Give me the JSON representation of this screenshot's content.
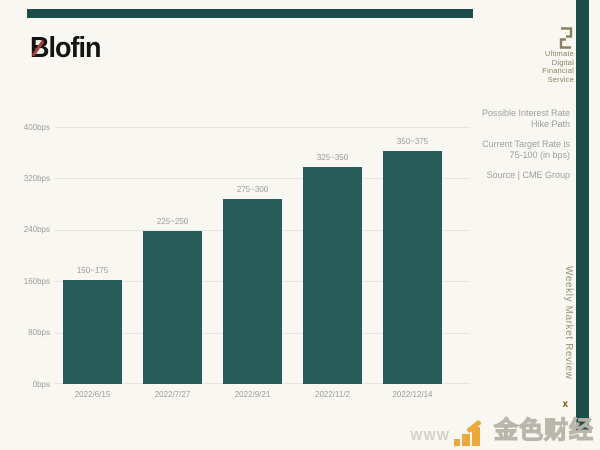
{
  "brand": {
    "name": "Blofin",
    "tagline": [
      "Ultimate",
      "Digital",
      "Financial",
      "Service"
    ]
  },
  "annotations": {
    "heading": [
      "Possible Interest Rate",
      "Hike Path"
    ],
    "target": [
      "Current Target Rate is",
      "75-100 (in bps)"
    ],
    "source": "Source | CME Group"
  },
  "side": {
    "vertical_label": "Weekly Market Review"
  },
  "watermark": {
    "www_text": "WWW",
    "site_name": "金色财经",
    "small_x": "x",
    "icon": "gold-bar-chart-icon"
  },
  "colors": {
    "background": "#f8f7f2",
    "accent_bar": "#1e4c48",
    "chart_bar": "#265c59",
    "olive_text": "#8b8162",
    "gray_text": "#9c9c9a",
    "gold": "#eda83d"
  },
  "chart_data": {
    "type": "bar",
    "title": "Possible Interest Rate Hike Path",
    "categories": [
      "2022/6/15",
      "2022/7/27",
      "2022/9/21",
      "2022/11/2",
      "2022/12/14"
    ],
    "values": [
      162.5,
      237.5,
      287.5,
      337.5,
      362.5
    ],
    "bar_labels": [
      "150~175",
      "225~250",
      "275~300",
      "325~350",
      "350~375"
    ],
    "unit": "bps",
    "ylim": [
      0,
      400
    ],
    "y_ticks": [
      {
        "value": 400,
        "label": "400bps"
      },
      {
        "value": 320,
        "label": "320bps"
      },
      {
        "value": 240,
        "label": "240bps"
      },
      {
        "value": 160,
        "label": "160bps"
      },
      {
        "value": 80,
        "label": "80bps"
      },
      {
        "value": 0,
        "label": "0bps"
      }
    ],
    "grid": true,
    "legend": false,
    "bar_color": "#265c59"
  }
}
